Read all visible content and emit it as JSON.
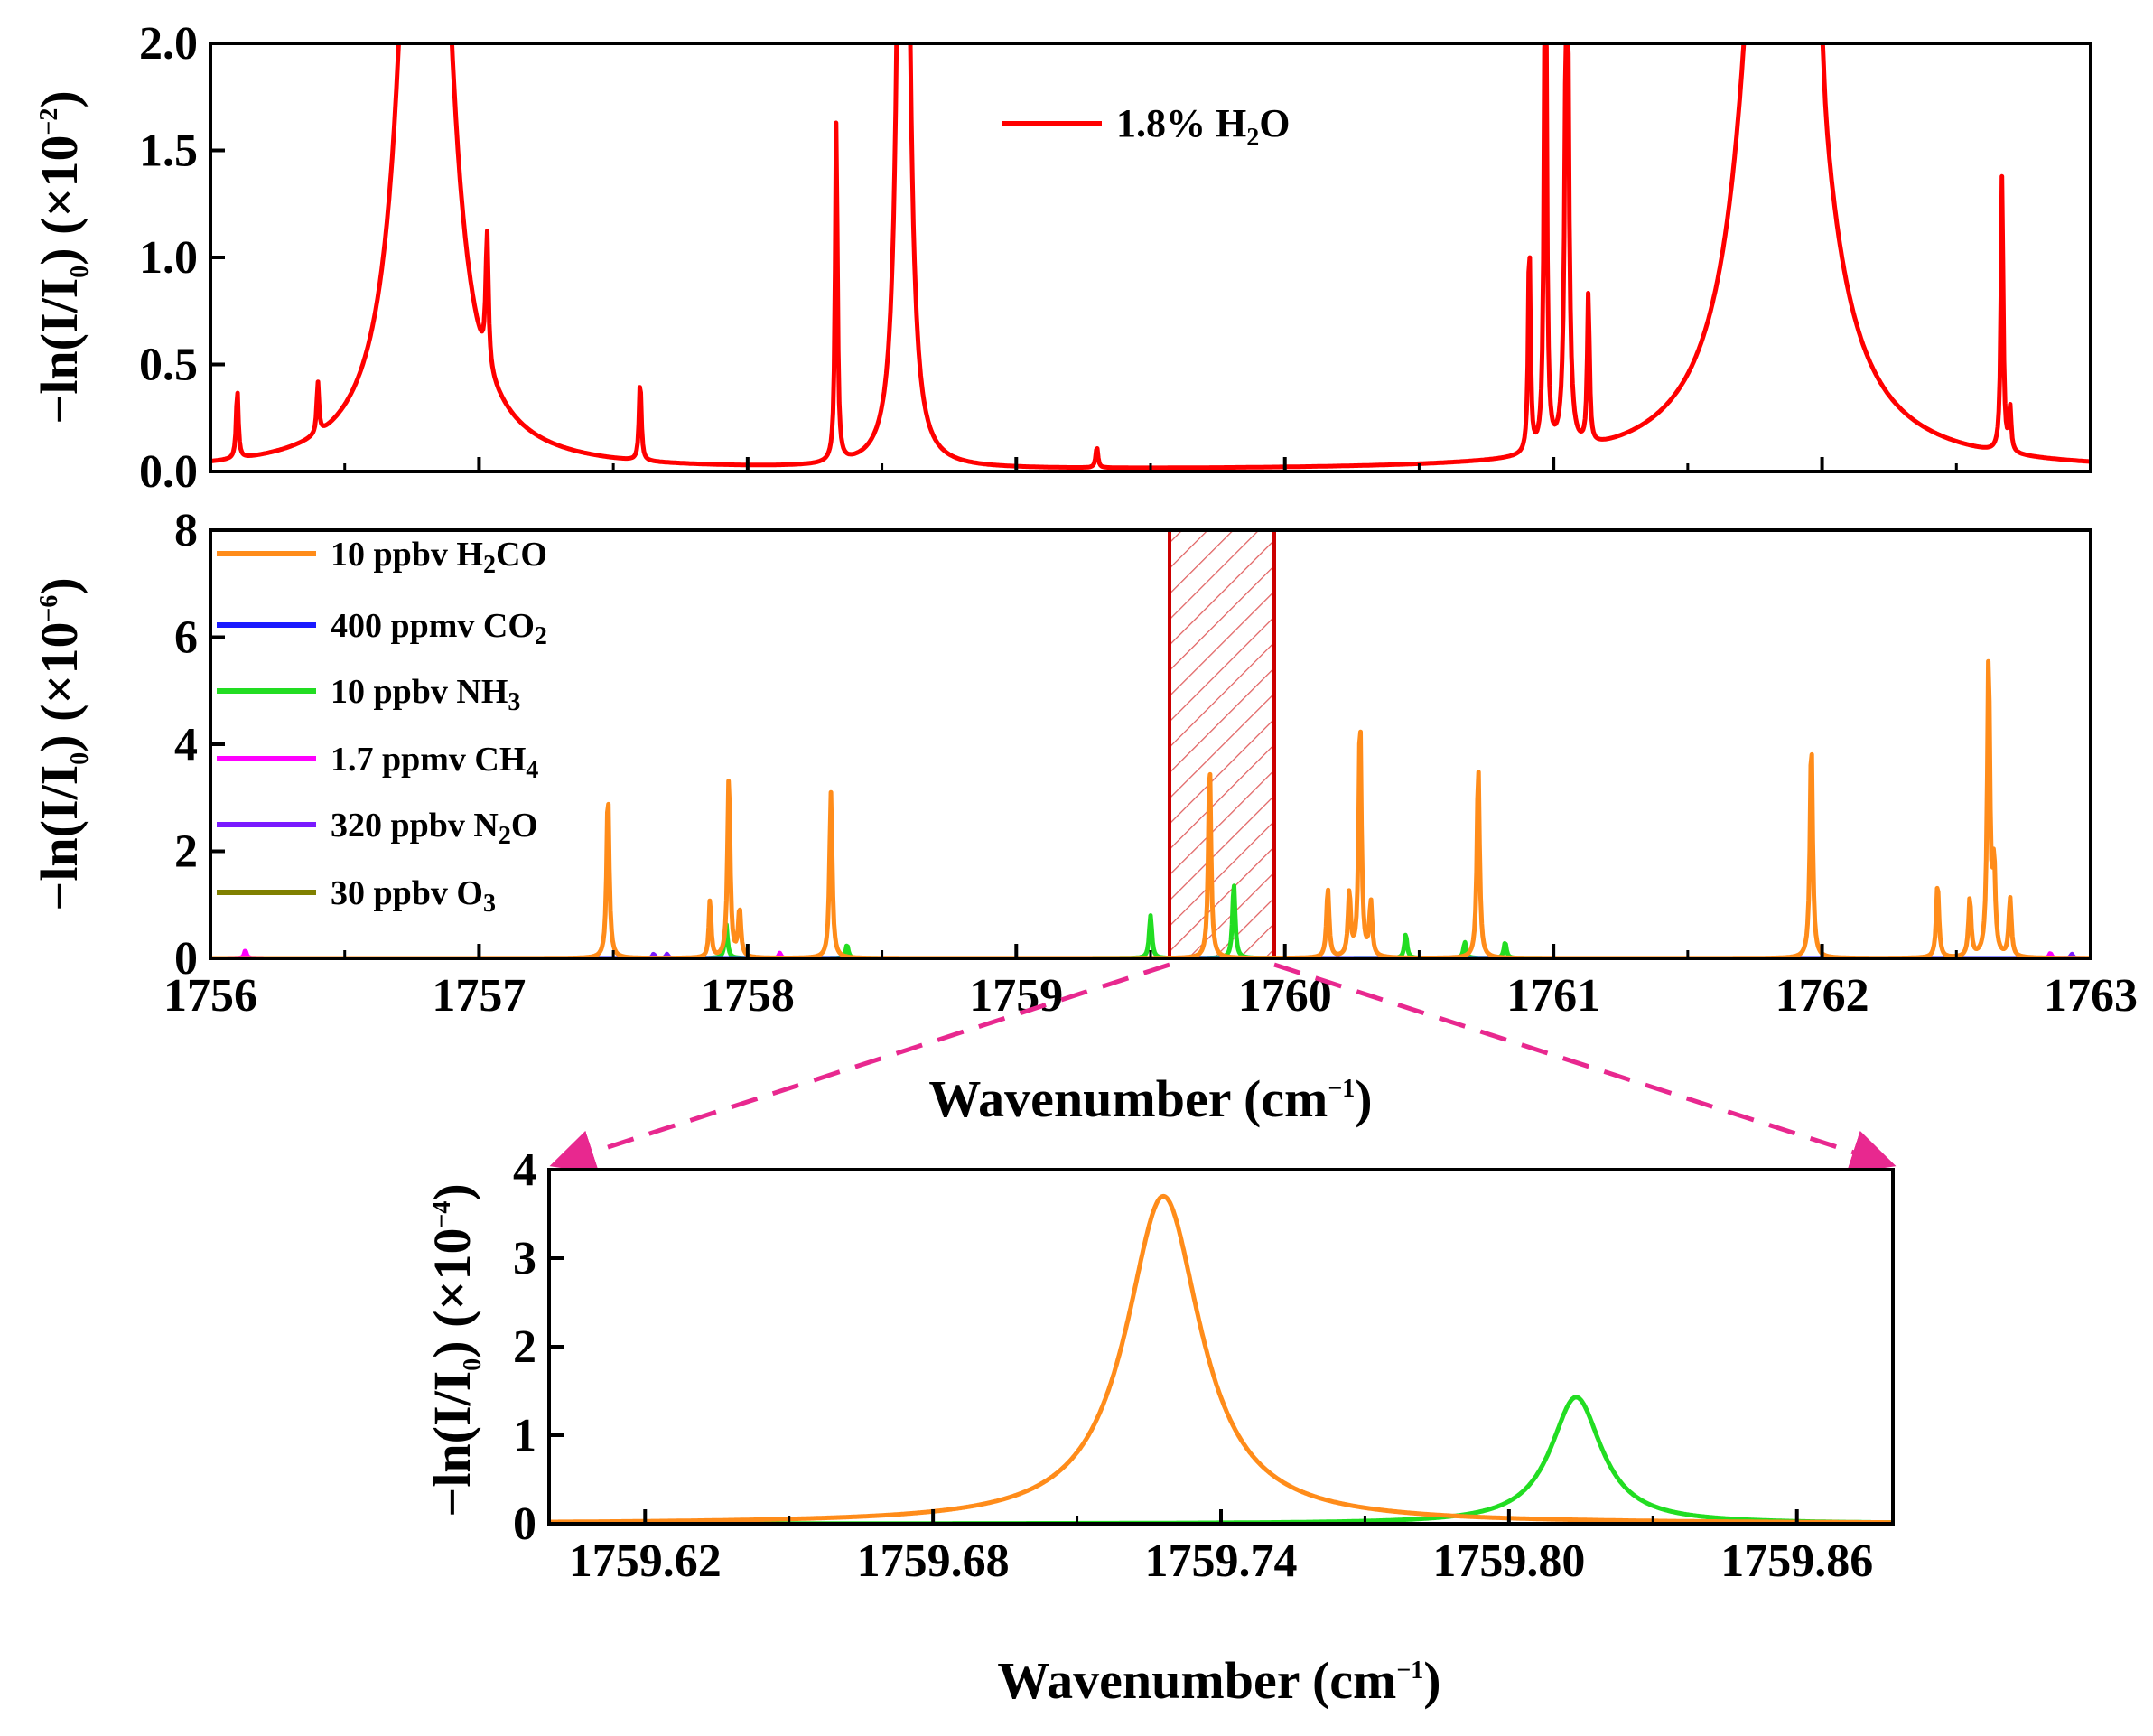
{
  "chart_data": [
    {
      "id": "top",
      "type": "line",
      "title": "",
      "xlabel": "",
      "ylabel": "−ln(I/I0) (×10−2)",
      "xlim": [
        1756,
        1763
      ],
      "ylim": [
        0,
        2.0
      ],
      "xticks": [
        "1756",
        "1757",
        "1758",
        "1759",
        "1760",
        "1761",
        "1762",
        "1763"
      ],
      "yticks": [
        "0.0",
        "0.5",
        "1.0",
        "1.5",
        "2.0"
      ],
      "ytick_values": [
        0,
        0.5,
        1.0,
        1.5,
        2.0
      ],
      "legend_position": "top-center",
      "series": [
        {
          "name": "1.8% H2O",
          "color": "#ff0000",
          "peaks": [
            {
              "x": 1756.1,
              "h": 0.32,
              "w": 0.005
            },
            {
              "x": 1756.4,
              "h": 0.24,
              "w": 0.005
            },
            {
              "x": 1756.8,
              "h": 6.0,
              "w": 0.07
            },
            {
              "x": 1757.03,
              "h": 0.62,
              "w": 0.006
            },
            {
              "x": 1757.6,
              "h": 0.38,
              "w": 0.005
            },
            {
              "x": 1758.33,
              "h": 1.6,
              "w": 0.005
            },
            {
              "x": 1758.58,
              "h": 6.0,
              "w": 0.018
            },
            {
              "x": 1759.3,
              "h": 0.1,
              "w": 0.005
            },
            {
              "x": 1760.91,
              "h": 1.0,
              "w": 0.005
            },
            {
              "x": 1760.97,
              "h": 3.0,
              "w": 0.005
            },
            {
              "x": 1761.05,
              "h": 3.0,
              "w": 0.007
            },
            {
              "x": 1761.13,
              "h": 0.7,
              "w": 0.005
            },
            {
              "x": 1761.85,
              "h": 6.0,
              "w": 0.1
            },
            {
              "x": 1762.0,
              "h": 0.22,
              "w": 0.008
            },
            {
              "x": 1762.67,
              "h": 1.3,
              "w": 0.005
            },
            {
              "x": 1762.7,
              "h": 0.2,
              "w": 0.005
            }
          ]
        }
      ]
    },
    {
      "id": "middle",
      "type": "line",
      "title": "",
      "xlabel": "Wavenumber (cm−1)",
      "ylabel": "−ln(I/I0) (×10−6)",
      "xlim": [
        1756,
        1763
      ],
      "ylim": [
        0,
        8
      ],
      "xticks": [
        "1756",
        "1757",
        "1758",
        "1759",
        "1760",
        "1761",
        "1762",
        "1763"
      ],
      "yticks": [
        "0",
        "2",
        "4",
        "6",
        "8"
      ],
      "ytick_values": [
        0,
        2,
        4,
        6,
        8
      ],
      "legend_position": "top-left",
      "highlight_range": [
        1759.58,
        1759.98
      ],
      "series": [
        {
          "name": "10 ppbv H2CO",
          "color": "#ff8c1a",
          "peaks": [
            {
              "x": 1757.48,
              "h": 3.1,
              "w": 0.006
            },
            {
              "x": 1757.86,
              "h": 1.1,
              "w": 0.005
            },
            {
              "x": 1757.93,
              "h": 3.4,
              "w": 0.006
            },
            {
              "x": 1757.97,
              "h": 0.9,
              "w": 0.006
            },
            {
              "x": 1758.31,
              "h": 3.1,
              "w": 0.006
            },
            {
              "x": 1759.72,
              "h": 3.7,
              "w": 0.006
            },
            {
              "x": 1760.16,
              "h": 1.3,
              "w": 0.006
            },
            {
              "x": 1760.24,
              "h": 1.2,
              "w": 0.006
            },
            {
              "x": 1760.28,
              "h": 4.5,
              "w": 0.006
            },
            {
              "x": 1760.32,
              "h": 1.0,
              "w": 0.006
            },
            {
              "x": 1760.72,
              "h": 3.6,
              "w": 0.006
            },
            {
              "x": 1761.96,
              "h": 4.1,
              "w": 0.006
            },
            {
              "x": 1762.43,
              "h": 1.4,
              "w": 0.006
            },
            {
              "x": 1762.55,
              "h": 1.1,
              "w": 0.006
            },
            {
              "x": 1762.62,
              "h": 5.6,
              "w": 0.006
            },
            {
              "x": 1762.64,
              "h": 1.6,
              "w": 0.006
            },
            {
              "x": 1762.7,
              "h": 1.1,
              "w": 0.006
            }
          ]
        },
        {
          "name": "400 ppmv CO2",
          "color": "#1a1aff",
          "peaks": []
        },
        {
          "name": "10 ppbv NH3",
          "color": "#22dd22",
          "peaks": [
            {
              "x": 1757.92,
              "h": 0.65,
              "w": 0.006
            },
            {
              "x": 1758.37,
              "h": 0.25,
              "w": 0.006
            },
            {
              "x": 1759.5,
              "h": 0.8,
              "w": 0.006
            },
            {
              "x": 1759.81,
              "h": 1.4,
              "w": 0.006
            },
            {
              "x": 1760.45,
              "h": 0.45,
              "w": 0.006
            },
            {
              "x": 1760.67,
              "h": 0.3,
              "w": 0.006
            },
            {
              "x": 1760.82,
              "h": 0.3,
              "w": 0.006
            }
          ]
        },
        {
          "name": "1.7 ppmv CH4",
          "color": "#ff00ff",
          "peaks": [
            {
              "x": 1756.13,
              "h": 0.15,
              "w": 0.005
            },
            {
              "x": 1758.12,
              "h": 0.1,
              "w": 0.005
            },
            {
              "x": 1762.85,
              "h": 0.1,
              "w": 0.005
            }
          ]
        },
        {
          "name": "320 ppbv N2O",
          "color": "#7a1aff",
          "peaks": [
            {
              "x": 1757.65,
              "h": 0.08,
              "w": 0.005
            },
            {
              "x": 1757.7,
              "h": 0.08,
              "w": 0.005
            },
            {
              "x": 1762.93,
              "h": 0.08,
              "w": 0.005
            }
          ]
        },
        {
          "name": "30 ppbv O3",
          "color": "#808000",
          "peaks": []
        }
      ]
    },
    {
      "id": "inset",
      "type": "line",
      "title": "",
      "xlabel": "Wavenumber (cm−1)",
      "ylabel": "−ln(I/I0) (×10−4)",
      "xlim": [
        1759.6,
        1759.88
      ],
      "ylim": [
        0,
        4
      ],
      "xticks": [
        "1759.62",
        "1759.68",
        "1759.74",
        "1759.80",
        "1759.86"
      ],
      "xtick_values": [
        1759.62,
        1759.68,
        1759.74,
        1759.8,
        1759.86
      ],
      "yticks": [
        "0",
        "1",
        "2",
        "3",
        "4"
      ],
      "ytick_values": [
        0,
        1,
        2,
        3,
        4
      ],
      "series": [
        {
          "name": "10 ppbv H2CO",
          "color": "#ff8c1a",
          "peaks": [
            {
              "x": 1759.728,
              "h": 3.7,
              "w": 0.0095
            }
          ]
        },
        {
          "name": "10 ppbv NH3",
          "color": "#22dd22",
          "peaks": [
            {
              "x": 1759.814,
              "h": 1.43,
              "w": 0.0065
            }
          ]
        }
      ]
    }
  ],
  "labels": {
    "top_ylabel_main": "−ln(I/I",
    "top_ylabel_sub": "0",
    "top_ylabel_tail": ") (×10",
    "top_ylabel_sup": "−2",
    "top_ylabel_end": ")",
    "mid_ylabel_main": "−ln(I/I",
    "mid_ylabel_sub": "0",
    "mid_ylabel_tail": ") (×10",
    "mid_ylabel_sup": "−6",
    "mid_ylabel_end": ")",
    "inset_ylabel_main": "−ln(I/I",
    "inset_ylabel_sub": "0",
    "inset_ylabel_tail": ") (×10",
    "inset_ylabel_sup": "−4",
    "inset_ylabel_end": ")",
    "mid_xlabel_main": "Wavenumber (cm",
    "mid_xlabel_sup": "−1",
    "mid_xlabel_end": ")",
    "inset_xlabel_main": "Wavenumber (cm",
    "inset_xlabel_sup": "−1",
    "inset_xlabel_end": ")",
    "legend_h2o_pre": "1.8% H",
    "legend_h2o_sub": "2",
    "legend_h2o_post": "O",
    "legend_h2co_pre": "10 ppbv H",
    "legend_h2co_sub": "2",
    "legend_h2co_post": "CO",
    "legend_co2_pre": "400 ppmv CO",
    "legend_co2_sub": "2",
    "legend_nh3_pre": "10 ppbv NH",
    "legend_nh3_sub": "3",
    "legend_ch4_pre": "1.7 ppmv CH",
    "legend_ch4_sub": "4",
    "legend_n2o_pre": "320 ppbv N",
    "legend_n2o_sub": "2",
    "legend_n2o_post": "O",
    "legend_o3_pre": "30 ppbv O",
    "legend_o3_sub": "3"
  },
  "colors": {
    "zoom_arrow": "#e8288f",
    "highlight_box": "#cc0000"
  }
}
